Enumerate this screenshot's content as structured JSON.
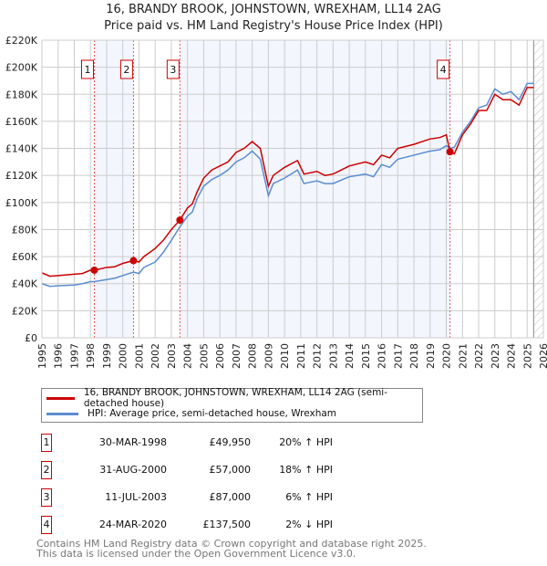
{
  "chart_data": {
    "type": "line",
    "title": "16, BRANDY BROOK, JOHNSTOWN, WREXHAM, LL14 2AG",
    "subtitle": "Price paid vs. HM Land Registry's House Price Index (HPI)",
    "xlim": [
      1995,
      2026
    ],
    "ylim": [
      0,
      220000
    ],
    "x_ticks": [
      "1995",
      "1996",
      "1997",
      "1998",
      "1999",
      "2000",
      "2001",
      "2002",
      "2003",
      "2004",
      "2005",
      "2006",
      "2007",
      "2008",
      "2009",
      "2010",
      "2011",
      "2012",
      "2013",
      "2014",
      "2015",
      "2016",
      "2017",
      "2018",
      "2019",
      "2020",
      "2021",
      "2022",
      "2023",
      "2024",
      "2025",
      "2026"
    ],
    "y_ticks": [
      {
        "v": 0,
        "label": "£0"
      },
      {
        "v": 20000,
        "label": "£20K"
      },
      {
        "v": 40000,
        "label": "£40K"
      },
      {
        "v": 60000,
        "label": "£60K"
      },
      {
        "v": 80000,
        "label": "£80K"
      },
      {
        "v": 100000,
        "label": "£100K"
      },
      {
        "v": 120000,
        "label": "£120K"
      },
      {
        "v": 140000,
        "label": "£140K"
      },
      {
        "v": 160000,
        "label": "£160K"
      },
      {
        "v": 180000,
        "label": "£180K"
      },
      {
        "v": 200000,
        "label": "£200K"
      },
      {
        "v": 220000,
        "label": "£220K"
      }
    ],
    "grid": true,
    "forecast_from": 2025.4,
    "series": [
      {
        "name": "16, BRANDY BROOK, JOHNSTOWN, WREXHAM, LL14 2AG (semi-detached house)",
        "color": "#cc0000",
        "x": [
          1995,
          1995.5,
          1996,
          1997,
          1997.5,
          1998,
          1998.24,
          1999,
          1999.5,
          2000,
          2000.66,
          2001,
          2001.3,
          2002,
          2002.5,
          2003,
          2003.53,
          2004,
          2004.3,
          2004.6,
          2005,
          2005.5,
          2006,
          2006.5,
          2007,
          2007.5,
          2008,
          2008.5,
          2009,
          2009.3,
          2010,
          2010.8,
          2011.2,
          2012,
          2012.5,
          2013,
          2014,
          2015,
          2015.5,
          2016,
          2016.5,
          2017,
          2018,
          2019,
          2019.6,
          2020,
          2020.23,
          2020.5,
          2021,
          2021.5,
          2022,
          2022.5,
          2023,
          2023.5,
          2024,
          2024.5,
          2025,
          2025.4
        ],
        "y": [
          48000,
          45500,
          46000,
          47000,
          47500,
          50000,
          49950,
          52000,
          52500,
          55000,
          57000,
          56000,
          60000,
          66000,
          72000,
          80000,
          87000,
          96000,
          99000,
          108000,
          118000,
          124000,
          127000,
          130000,
          137000,
          140000,
          145000,
          140000,
          112000,
          120000,
          126000,
          131000,
          121000,
          123000,
          120000,
          121000,
          127000,
          130000,
          128000,
          135000,
          133000,
          140000,
          143000,
          147000,
          148000,
          150000,
          137500,
          136000,
          150000,
          158000,
          168000,
          168000,
          180000,
          176000,
          176000,
          172000,
          185000,
          185000
        ]
      },
      {
        "name": "HPI: Average price, semi-detached house, Wrexham",
        "color": "#5b8dd0",
        "x": [
          1995,
          1995.5,
          1996,
          1997,
          1997.5,
          1998,
          1998.24,
          1999,
          1999.5,
          2000,
          2000.66,
          2001,
          2001.3,
          2002,
          2002.5,
          2003,
          2003.53,
          2004,
          2004.3,
          2004.6,
          2005,
          2005.5,
          2006,
          2006.5,
          2007,
          2007.5,
          2008,
          2008.5,
          2009,
          2009.3,
          2010,
          2010.8,
          2011.2,
          2012,
          2012.5,
          2013,
          2014,
          2015,
          2015.5,
          2016,
          2016.5,
          2017,
          2018,
          2019,
          2019.6,
          2020,
          2020.23,
          2020.5,
          2021,
          2021.5,
          2022,
          2022.5,
          2023,
          2023.5,
          2024,
          2024.5,
          2025,
          2025.4
        ],
        "y": [
          40000,
          38000,
          38500,
          39000,
          40000,
          41500,
          41500,
          43000,
          44000,
          46000,
          48500,
          47500,
          52000,
          56000,
          63000,
          72000,
          82000,
          90000,
          93000,
          103000,
          112000,
          117000,
          120000,
          124000,
          130000,
          133000,
          138000,
          132000,
          105000,
          114000,
          118000,
          124000,
          114000,
          116000,
          114000,
          114000,
          119000,
          121000,
          119000,
          128000,
          126000,
          132000,
          135000,
          138000,
          139000,
          142000,
          140000,
          141000,
          152000,
          160000,
          170000,
          172000,
          184000,
          180000,
          182000,
          176000,
          188000,
          188000
        ]
      }
    ],
    "sales": [
      {
        "id": "1",
        "x": 1998.24,
        "y": 49950,
        "date": "30-MAR-1998",
        "price": "£49,950",
        "hpi": "20% ↑ HPI"
      },
      {
        "id": "2",
        "x": 2000.66,
        "y": 57000,
        "date": "31-AUG-2000",
        "price": "£57,000",
        "hpi": "18% ↑ HPI"
      },
      {
        "id": "3",
        "x": 2003.53,
        "y": 87000,
        "date": "11-JUL-2003",
        "price": "£87,000",
        "hpi": "6% ↑ HPI"
      },
      {
        "id": "4",
        "x": 2020.23,
        "y": 137500,
        "date": "24-MAR-2020",
        "price": "£137,500",
        "hpi": "2% ↓ HPI"
      }
    ]
  },
  "footer": {
    "line1": "Contains HM Land Registry data © Crown copyright and database right 2025.",
    "line2": "This data is licensed under the Open Government Licence v3.0."
  }
}
